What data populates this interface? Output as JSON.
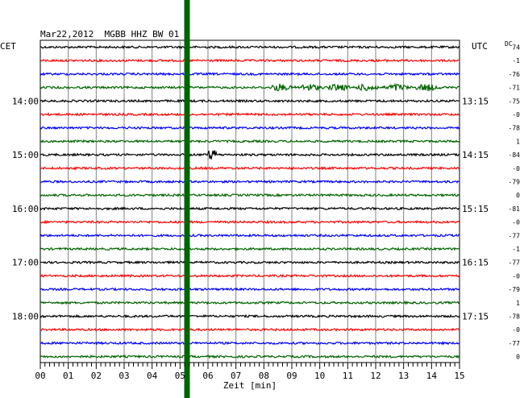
{
  "chart_data": {
    "type": "line",
    "title": "Mar22,2012  MGBB HHZ BW 01",
    "left_axis_title": "CET",
    "right_axis_title": "UTC",
    "dc_header": "DC",
    "xlabel": "Zeit [min]",
    "x_ticks": [
      "00",
      "01",
      "02",
      "03",
      "04",
      "05",
      "06",
      "07",
      "08",
      "09",
      "10",
      "11",
      "12",
      "13",
      "14",
      "15"
    ],
    "xlim": [
      0,
      15
    ],
    "left_time_labels": [
      {
        "row": 4,
        "label": "14:00"
      },
      {
        "row": 8,
        "label": "15:00"
      },
      {
        "row": 12,
        "label": "16:00"
      },
      {
        "row": 16,
        "label": "17:00"
      },
      {
        "row": 20,
        "label": "18:00"
      }
    ],
    "right_time_labels": [
      {
        "row": 4,
        "label": "13:15"
      },
      {
        "row": 8,
        "label": "14:15"
      },
      {
        "row": 12,
        "label": "15:15"
      },
      {
        "row": 16,
        "label": "16:15"
      },
      {
        "row": 20,
        "label": "17:15"
      }
    ],
    "dc_values": [
      "74",
      "-1",
      "-76",
      "-71",
      "-75",
      "-0",
      "-78",
      "1",
      "-84",
      "-0",
      "-79",
      "0",
      "-81",
      "-0",
      "-77",
      "-1",
      "-77",
      "-0",
      "-79",
      "1",
      "-78",
      "-0",
      "-77",
      "0"
    ],
    "trace_colors": [
      "#000000",
      "#ff0000",
      "#0000ff",
      "#006400"
    ],
    "grid": true,
    "marker": {
      "minute": 5.25,
      "color": "#006400"
    },
    "events": [
      {
        "row": 3,
        "minute_start": 8.3,
        "minute_end": 14.5,
        "amplitude": "elevated"
      },
      {
        "row": 8,
        "minute_start": 6.0,
        "minute_end": 6.3,
        "amplitude": "spike"
      }
    ]
  }
}
